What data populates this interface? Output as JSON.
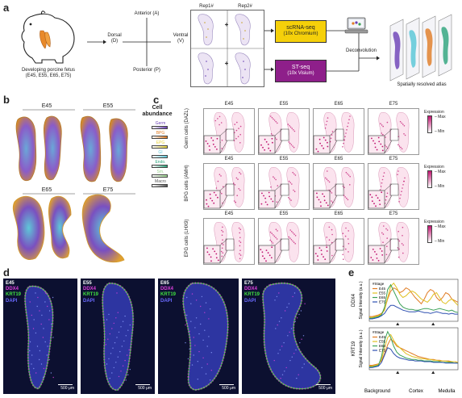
{
  "panel_labels": {
    "a": "a",
    "b": "b",
    "c": "c",
    "d": "d",
    "e": "e"
  },
  "panel_a": {
    "fetus_caption_line1": "Developing porcine fetus",
    "fetus_caption_line2": "(E45, E55, E65, E75)",
    "axis_anterior": "Anterior (A)",
    "axis_posterior": "Posterior (P)",
    "axis_dorsal": "Dorsal",
    "axis_dorsal_abbr": "(D)",
    "axis_ventral": "Ventral",
    "axis_ventral_abbr": "(V)",
    "rep1": "Rep1#",
    "rep2": "Rep2#",
    "plus": "+",
    "scrna_line1": "scRNA-seq",
    "scrna_line2": "(10x Chromium)",
    "st_line1": "ST-seq",
    "st_line2": "(10x Visium)",
    "deconvolution": "Deconvolution",
    "atlas": "Spatially resolved atlas",
    "colors": {
      "scrna_box": "#f5d00a",
      "st_box": "#8e1f8a"
    }
  },
  "panel_b": {
    "stages": [
      "E45",
      "E55",
      "E65",
      "E75"
    ],
    "legend_title_line1": "Cell",
    "legend_title_line2": "abundance",
    "legend_items": [
      {
        "name": "Germ",
        "color": "#6a3fb5"
      },
      {
        "name": "BPG",
        "color": "#e07b22"
      },
      {
        "name": "EPG",
        "color": "#e8d23a"
      },
      {
        "name": "GI",
        "color": "#5ec8d8"
      },
      {
        "name": "Endo.",
        "color": "#2aa37a"
      },
      {
        "name": "Sm.",
        "color": "#9bd48e"
      },
      {
        "name": "Macro",
        "color": "#555555"
      }
    ]
  },
  "panel_c": {
    "stages": [
      "E45",
      "E55",
      "E65",
      "E75"
    ],
    "rows": [
      {
        "label": "Germ cells (DAZL)"
      },
      {
        "label": "BPG cells (AMH)"
      },
      {
        "label": "EPG cells (LHX9)"
      }
    ],
    "expression_title": "Expression",
    "max_label": "Max",
    "min_label": "Min",
    "colors": {
      "expr_high": "#c0136f",
      "expr_low": "#fbe3ee"
    }
  },
  "panel_d": {
    "images": [
      {
        "stage": "E45",
        "markers": [
          "DDX4",
          "KRT19",
          "DAPI"
        ],
        "scale": "500 μm"
      },
      {
        "stage": "E55",
        "markers": [
          "DDX4",
          "KRT19",
          "DAPI"
        ],
        "scale": "500 μm"
      },
      {
        "stage": "E65",
        "markers": [
          "DDX4",
          "KRT19",
          "DAPI"
        ],
        "scale": "500 μm"
      },
      {
        "stage": "E75",
        "markers": [
          "DDX4",
          "KRT19",
          "DAPI"
        ],
        "scale": "500 μm"
      }
    ],
    "colors": {
      "DDX4": "#e040e0",
      "KRT19": "#40e040",
      "DAPI": "#6a6aff"
    }
  },
  "panel_e": {
    "legend_title": "#Stage",
    "series_names": [
      "E45",
      "E55",
      "E65",
      "E75"
    ],
    "series_colors": [
      "#e07b22",
      "#e0c020",
      "#3aa055",
      "#2d4fb0"
    ],
    "x_regions": [
      "Background",
      "Cortex",
      "Medulla"
    ]
  },
  "chart_data": [
    {
      "type": "line",
      "ylabel_line1": "DDX4",
      "ylabel_line2": "Signal Intensity (a.u.)",
      "x": [
        0,
        1,
        2,
        3,
        4,
        5,
        6,
        7,
        8,
        9,
        10,
        11,
        12,
        13,
        14,
        15,
        16,
        17,
        18,
        19,
        20,
        21,
        22,
        23,
        24,
        25,
        26,
        27,
        28,
        29
      ],
      "series": [
        {
          "name": "E45",
          "values": [
            6,
            6,
            7,
            8,
            10,
            15,
            28,
            38,
            42,
            40,
            36,
            38,
            42,
            40,
            35,
            30,
            26,
            22,
            28,
            36,
            40,
            38,
            30,
            26,
            30,
            36,
            34,
            28,
            26,
            24
          ]
        },
        {
          "name": "E55",
          "values": [
            5,
            5,
            6,
            7,
            9,
            14,
            30,
            44,
            48,
            42,
            34,
            30,
            32,
            36,
            38,
            36,
            32,
            28,
            26,
            24,
            28,
            34,
            36,
            30,
            24,
            22,
            26,
            28,
            24,
            20
          ]
        },
        {
          "name": "E65",
          "values": [
            4,
            4,
            5,
            6,
            8,
            18,
            40,
            46,
            38,
            30,
            22,
            18,
            16,
            15,
            15,
            14,
            14,
            15,
            16,
            16,
            15,
            14,
            15,
            16,
            15,
            14,
            13,
            14,
            12,
            11
          ]
        },
        {
          "name": "E75",
          "values": [
            3,
            3,
            4,
            5,
            7,
            10,
            16,
            20,
            20,
            18,
            16,
            14,
            13,
            12,
            12,
            12,
            13,
            12,
            11,
            11,
            10,
            11,
            12,
            11,
            10,
            10,
            9,
            10,
            9,
            9
          ]
        }
      ]
    },
    {
      "type": "line",
      "ylabel_line1": "KRT19",
      "ylabel_line2": "Signal Intensity (a.u.)",
      "x": [
        0,
        1,
        2,
        3,
        4,
        5,
        6,
        7,
        8,
        9,
        10,
        11,
        12,
        13,
        14,
        15,
        16,
        17,
        18,
        19,
        20,
        21,
        22,
        23,
        24,
        25,
        26,
        27,
        28,
        29
      ],
      "series": [
        {
          "name": "E45",
          "values": [
            6,
            6,
            7,
            8,
            12,
            22,
            34,
            42,
            38,
            32,
            30,
            28,
            26,
            24,
            22,
            20,
            18,
            17,
            16,
            15,
            14,
            14,
            13,
            13,
            12,
            12,
            12,
            11,
            11,
            10
          ]
        },
        {
          "name": "E55",
          "values": [
            5,
            5,
            6,
            7,
            14,
            30,
            44,
            48,
            40,
            34,
            30,
            26,
            22,
            20,
            18,
            17,
            16,
            15,
            15,
            14,
            14,
            13,
            13,
            12,
            12,
            12,
            11,
            11,
            11,
            10
          ]
        },
        {
          "name": "E65",
          "values": [
            4,
            4,
            5,
            6,
            18,
            40,
            52,
            44,
            32,
            24,
            20,
            18,
            16,
            15,
            14,
            14,
            13,
            13,
            12,
            12,
            12,
            11,
            11,
            11,
            10,
            10,
            10,
            10,
            9,
            9
          ]
        },
        {
          "name": "E75",
          "values": [
            3,
            3,
            4,
            5,
            10,
            20,
            30,
            28,
            22,
            18,
            16,
            15,
            14,
            13,
            13,
            12,
            12,
            12,
            11,
            11,
            11,
            10,
            10,
            10,
            10,
            9,
            9,
            9,
            9,
            9
          ]
        }
      ]
    }
  ]
}
